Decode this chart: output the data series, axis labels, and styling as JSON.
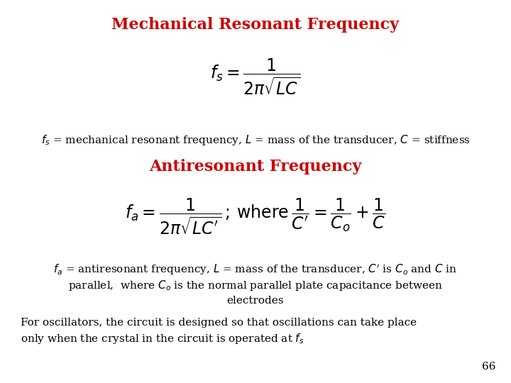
{
  "title": "Mechanical Resonant Frequency",
  "title_color": "#CC0000",
  "title_fontsize": 16,
  "bg_color": "#FFFFFF",
  "formula1": "$f_s = \\dfrac{1}{2\\pi\\sqrt{LC}}$",
  "desc1": "$f_s$ = mechanical resonant frequency, $L$ = mass of the transducer, $C$ = stiffness",
  "subtitle": "Antiresonant Frequency",
  "subtitle_color": "#CC0000",
  "subtitle_fontsize": 16,
  "formula2": "$f_a = \\dfrac{1}{2\\pi\\sqrt{LC'}}\\,;\\,\\mathrm{where}\\,\\dfrac{1}{C'} = \\dfrac{1}{C_o} + \\dfrac{1}{C}$",
  "desc2_line1": "$f_a$ = antiresonant frequency, $L$ = mass of the transducer, $C'$ is $C_o$ and $C$ in",
  "desc2_line2": "parallel,  where $C_o$ is the normal parallel plate capacitance between",
  "desc2_line3": "electrodes",
  "desc3": "For oscillators, the circuit is designed so that oscillations can take place",
  "desc4": "only when the crystal in the circuit is operated at $f_s$",
  "page_num": "66",
  "text_color": "#000000",
  "desc_fontsize": 11,
  "formula_fontsize": 17
}
